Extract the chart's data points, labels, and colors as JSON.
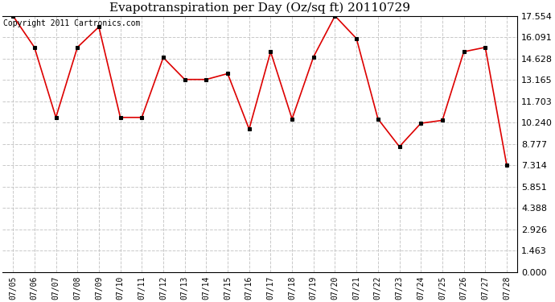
{
  "title": "Evapotranspiration per Day (Oz/sq ft) 20110729",
  "copyright": "Copyright 2011 Cartronics.com",
  "x_labels": [
    "07/05",
    "07/06",
    "07/07",
    "07/08",
    "07/09",
    "07/10",
    "07/11",
    "07/12",
    "07/13",
    "07/14",
    "07/15",
    "07/16",
    "07/17",
    "07/18",
    "07/19",
    "07/20",
    "07/21",
    "07/22",
    "07/23",
    "07/24",
    "07/25",
    "07/26",
    "07/27",
    "07/28"
  ],
  "y_values": [
    17.554,
    15.4,
    10.6,
    15.4,
    16.8,
    10.6,
    10.6,
    14.7,
    13.2,
    13.2,
    13.6,
    9.8,
    15.1,
    10.5,
    14.75,
    17.554,
    16.0,
    10.5,
    8.6,
    10.2,
    10.4,
    15.1,
    15.4,
    7.314
  ],
  "y_ticks": [
    0.0,
    1.463,
    2.926,
    4.388,
    5.851,
    7.314,
    8.777,
    10.24,
    11.703,
    13.165,
    14.628,
    16.091,
    17.554
  ],
  "y_min": 0.0,
  "y_max": 17.554,
  "line_color": "#dd0000",
  "marker_color": "#000000",
  "bg_color": "#ffffff",
  "grid_color": "#bbbbbb",
  "title_fontsize": 11,
  "copyright_fontsize": 7,
  "tick_fontsize": 8,
  "xtick_fontsize": 7
}
